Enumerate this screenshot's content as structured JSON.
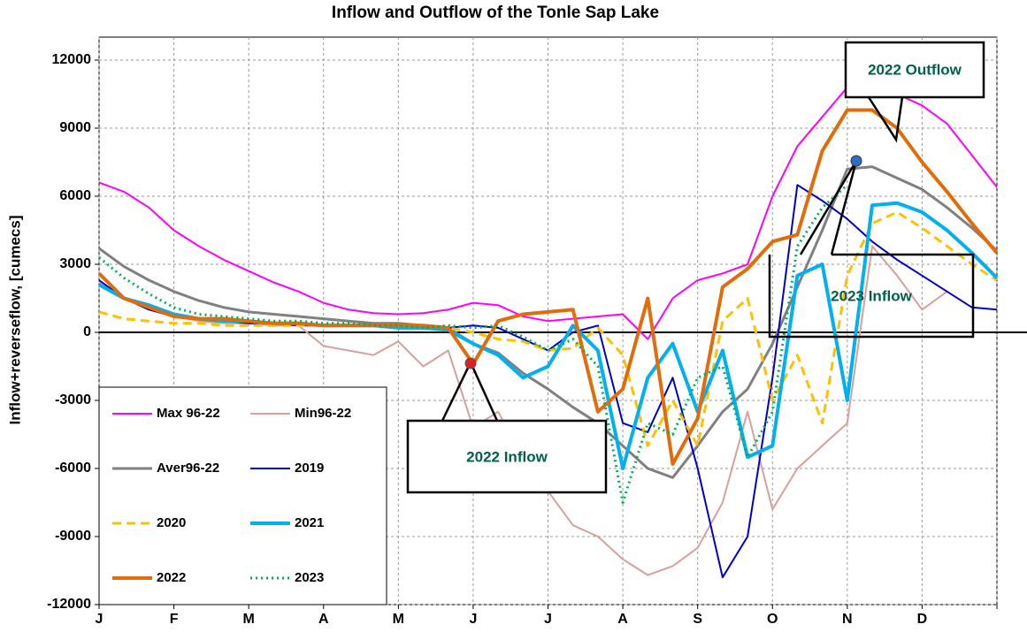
{
  "chart_data": {
    "type": "line",
    "title": "Inflow and Outflow of the Tonle Sap Lake",
    "y_label": "Inflow+reverseflow, [cumecs]",
    "categories": [
      "J",
      null,
      null,
      "F",
      null,
      null,
      "M",
      null,
      null,
      "A",
      null,
      null,
      "M",
      null,
      null,
      "J",
      null,
      null,
      "J",
      null,
      null,
      "A",
      null,
      null,
      "S",
      null,
      null,
      "O",
      null,
      null,
      "N",
      null,
      null,
      "D",
      null,
      null,
      null
    ],
    "ylim": [
      -12000,
      12000
    ],
    "yticks": [
      -12000,
      -9000,
      -6000,
      -3000,
      0,
      3000,
      6000,
      9000,
      12000
    ],
    "grid": true,
    "legend": "lower left",
    "annotations": [
      "2022 Outflow",
      "2023 Inflow",
      "2022 Inflow"
    ],
    "series": [
      {
        "name": "Max 96-22",
        "color": "#ff00ff",
        "dash": "solid",
        "width": 2,
        "values": [
          6600,
          6200,
          5500,
          4500,
          3800,
          3200,
          2700,
          2200,
          1800,
          1300,
          1000,
          850,
          800,
          850,
          1000,
          1300,
          1200,
          700,
          500,
          600,
          700,
          800,
          -300,
          1500,
          2300,
          2600,
          3000,
          6000,
          8200,
          9500,
          10800,
          10900,
          10500,
          10000,
          9200,
          7800,
          6400
        ]
      },
      {
        "name": "Min96-22",
        "color": "#d8a09a",
        "dash": "solid",
        "width": 2,
        "values": [
          2200,
          1500,
          1100,
          700,
          500,
          400,
          400,
          300,
          300,
          -600,
          -800,
          -1000,
          -400,
          -1500,
          -800,
          -4200,
          -3500,
          -5500,
          -7000,
          -8500,
          -9000,
          -10000,
          -10700,
          -10300,
          -9500,
          -7500,
          -3500,
          -7800,
          -6000,
          -5000,
          -4000,
          3800,
          2500,
          1000,
          1800,
          null,
          null
        ]
      },
      {
        "name": "Aver96-22",
        "color": "#808080",
        "dash": "solid",
        "width": 3,
        "values": [
          3700,
          2900,
          2300,
          1800,
          1400,
          1100,
          900,
          800,
          700,
          600,
          500,
          400,
          400,
          300,
          200,
          -500,
          -900,
          -1800,
          -2500,
          -3300,
          -4000,
          -5000,
          -6000,
          -6400,
          -5000,
          -3500,
          -2500,
          -500,
          2000,
          4500,
          7200,
          7300,
          6800,
          6300,
          5500,
          4600,
          3600
        ]
      },
      {
        "name": "2019",
        "color": "#0000cc",
        "dash": "solid",
        "width": 2,
        "values": [
          2300,
          1500,
          1000,
          700,
          600,
          500,
          400,
          400,
          300,
          300,
          300,
          300,
          200,
          200,
          200,
          300,
          200,
          -300,
          -800,
          0,
          300,
          -4000,
          -4400,
          -2000,
          -6000,
          -10800,
          -9000,
          -2000,
          6500,
          5800,
          5000,
          4000,
          3200,
          2500,
          1800,
          1100,
          1000
        ]
      },
      {
        "name": "2020",
        "color": "#ffc000",
        "dash": "dashed",
        "width": 3,
        "values": [
          900,
          600,
          500,
          400,
          400,
          300,
          300,
          300,
          300,
          300,
          300,
          300,
          300,
          300,
          200,
          0,
          -300,
          -400,
          -800,
          -700,
          200,
          -1000,
          -5000,
          -3000,
          -5000,
          500,
          1500,
          -3000,
          -1000,
          -4000,
          2500,
          4800,
          5300,
          4600,
          3800,
          3000,
          2300
        ]
      },
      {
        "name": "2021",
        "color": "#00b0f0",
        "dash": "solid",
        "width": 4,
        "values": [
          2100,
          1500,
          1200,
          800,
          600,
          500,
          500,
          400,
          400,
          300,
          300,
          300,
          200,
          200,
          100,
          -500,
          -1000,
          -2000,
          -1500,
          300,
          -800,
          -6000,
          -2000,
          -500,
          -3500,
          -800,
          -5500,
          -5000,
          2500,
          3000,
          -3000,
          5600,
          5700,
          5300,
          4500,
          3500,
          2400
        ]
      },
      {
        "name": "2022",
        "color": "#e26b0a",
        "dash": "solid",
        "width": 4,
        "values": [
          2600,
          1500,
          1100,
          700,
          600,
          600,
          500,
          400,
          400,
          300,
          300,
          300,
          300,
          300,
          200,
          -1400,
          500,
          800,
          900,
          1000,
          -3500,
          -2500,
          1500,
          -5800,
          -3800,
          2000,
          2800,
          4000,
          4300,
          8000,
          9800,
          9800,
          9000,
          7500,
          6200,
          4800,
          3500
        ]
      },
      {
        "name": "2023",
        "color": "#00b050",
        "dash": "dotted",
        "width": 3,
        "values": [
          3300,
          2400,
          1700,
          1100,
          800,
          700,
          600,
          500,
          500,
          400,
          400,
          300,
          300,
          200,
          300,
          200,
          300,
          -200,
          -800,
          -300,
          -1500,
          -7500,
          -4000,
          -4500,
          -2000,
          -1500,
          -5500,
          -3500,
          3800,
          5500,
          6500,
          null,
          null,
          null,
          null,
          null,
          null
        ]
      }
    ]
  }
}
